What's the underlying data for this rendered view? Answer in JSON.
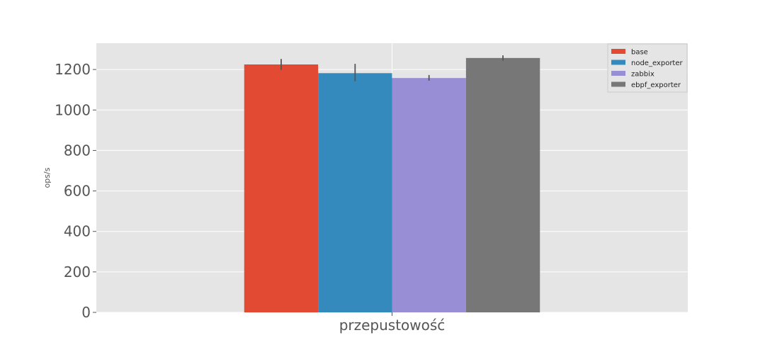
{
  "chart_data": {
    "type": "bar",
    "ylabel": "ops/s",
    "xlabel": "",
    "categories": [
      "przepustowość"
    ],
    "ylim": [
      0,
      1330
    ],
    "yticks": [
      0,
      200,
      400,
      600,
      800,
      1000,
      1200
    ],
    "grid": true,
    "legend_position": "top-right",
    "series": [
      {
        "name": "base",
        "values": [
          1225
        ],
        "error": [
          [
            1198,
            1252
          ]
        ],
        "color": "#E24A33"
      },
      {
        "name": "node_exporter",
        "values": [
          1182
        ],
        "error": [
          [
            1142,
            1228
          ]
        ],
        "color": "#348ABD"
      },
      {
        "name": "zabbix",
        "values": [
          1158
        ],
        "error": [
          [
            1145,
            1173
          ]
        ],
        "color": "#988ED5"
      },
      {
        "name": "ebpf_exporter",
        "values": [
          1257
        ],
        "error": [
          [
            1244,
            1270
          ]
        ],
        "color": "#777777"
      }
    ]
  }
}
